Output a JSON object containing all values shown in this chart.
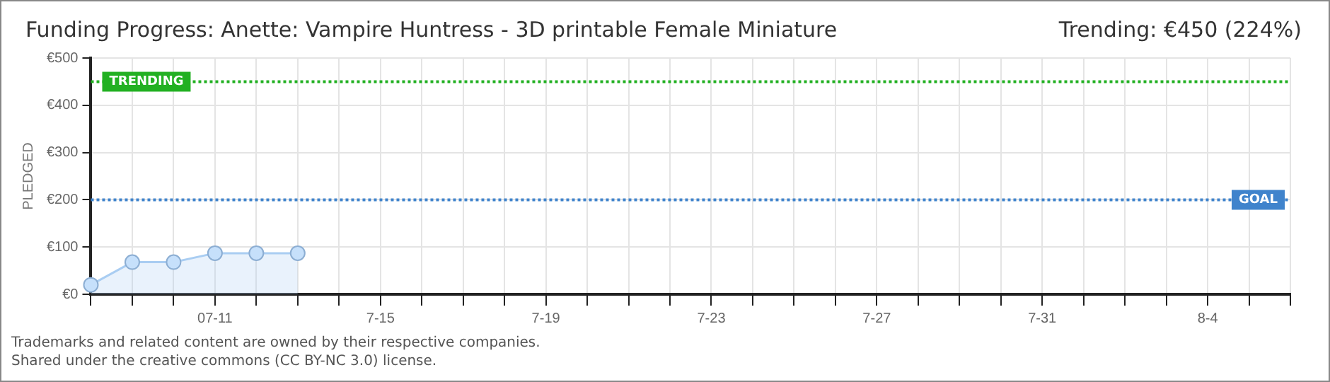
{
  "chart_data": {
    "type": "area",
    "title": "Funding Progress: Anette: Vampire Huntress - 3D printable Female Miniature",
    "subtitle": "Trending:  €450 (224%)",
    "ylabel": "PLEDGED",
    "categories": [
      null,
      null,
      null,
      "07-11",
      null,
      null,
      null,
      "7-15",
      null,
      null,
      null,
      "7-19",
      null,
      null,
      null,
      "7-23",
      null,
      null,
      null,
      "7-27",
      null,
      null,
      null,
      "7-31",
      null,
      null,
      null,
      "8-4",
      null,
      null
    ],
    "series": [
      {
        "color": "#a9cdf2",
        "values": [
          20,
          68,
          68,
          87,
          87,
          87,
          null,
          null,
          null,
          null,
          null,
          null,
          null,
          null,
          null,
          null,
          null,
          null,
          null,
          null,
          null,
          null,
          null,
          null,
          null,
          null,
          null,
          null,
          null,
          null
        ]
      }
    ],
    "ylim": [
      0,
      500
    ],
    "yticks": [
      {
        "value": 0,
        "label": "€0"
      },
      {
        "value": 100,
        "label": "€100"
      },
      {
        "value": 200,
        "label": "€200"
      },
      {
        "value": 300,
        "label": "€300"
      },
      {
        "value": 400,
        "label": "€400"
      },
      {
        "value": 500,
        "label": "€500"
      }
    ],
    "grid": true,
    "marker": "circle",
    "ref_lines": [
      {
        "axis": "y",
        "value": 450,
        "label": "TRENDING",
        "color": "#22b022",
        "line_style": "dotted"
      },
      {
        "axis": "y",
        "value": 200,
        "label": "GOAL",
        "color": "#3f83cc",
        "line_style": "dotted"
      }
    ],
    "annotations": [
      "Trademarks and related content are owned by their respective companies.",
      "Shared under the creative commons (CC BY-NC 3.0) license."
    ]
  }
}
